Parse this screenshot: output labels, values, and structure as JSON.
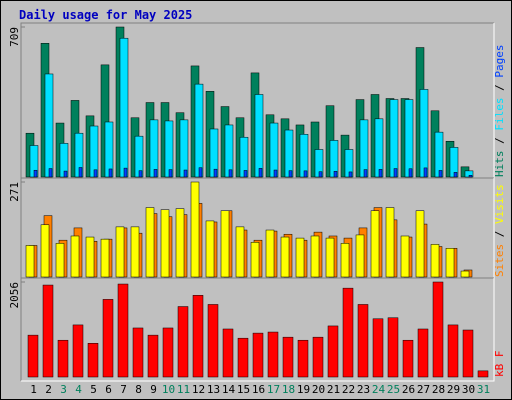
{
  "title": "Daily usage for May 2025",
  "legend_separator": "/",
  "chart_data": [
    {
      "type": "bar",
      "ylim": [
        0,
        709
      ],
      "yticks": [
        709
      ],
      "series": [
        {
          "name": "Hits",
          "color": "#00805c",
          "values": [
            207,
            632,
            255,
            362,
            289,
            530,
            709,
            280,
            352,
            352,
            304,
            525,
            405,
            333,
            280,
            492,
            294,
            275,
            246,
            260,
            337,
            198,
            366,
            390,
            371,
            371,
            612,
            313,
            169,
            48,
            0
          ]
        },
        {
          "name": "Files",
          "color": "#00e0ff",
          "values": [
            149,
            487,
            159,
            207,
            241,
            260,
            656,
            193,
            270,
            265,
            270,
            439,
            227,
            246,
            188,
            390,
            255,
            222,
            202,
            130,
            173,
            130,
            270,
            275,
            366,
            366,
            414,
            212,
            140,
            29,
            0
          ]
        },
        {
          "name": "Pages",
          "color": "#0040ff",
          "values": [
            32,
            40,
            28,
            45,
            34,
            38,
            42,
            30,
            36,
            35,
            33,
            44,
            37,
            34,
            31,
            41,
            33,
            30,
            29,
            25,
            27,
            24,
            35,
            36,
            40,
            39,
            43,
            31,
            22,
            8,
            0
          ]
        }
      ]
    },
    {
      "type": "bar",
      "ylim": [
        0,
        271
      ],
      "yticks": [
        271
      ],
      "series": [
        {
          "name": "Sites",
          "color": "#ff8000",
          "values": [
            90,
            175,
            105,
            140,
            102,
            108,
            140,
            125,
            181,
            172,
            178,
            210,
            157,
            189,
            134,
            105,
            131,
            122,
            105,
            128,
            117,
            111,
            140,
            198,
            163,
            114,
            151,
            87,
            82,
            20,
            0
          ]
        },
        {
          "name": "Visits",
          "color": "#ffff00",
          "values": [
            90,
            149,
            96,
            117,
            114,
            108,
            143,
            143,
            198,
            192,
            195,
            271,
            160,
            189,
            143,
            99,
            134,
            114,
            111,
            117,
            111,
            96,
            120,
            189,
            198,
            117,
            189,
            93,
            82,
            17,
            0
          ]
        }
      ]
    },
    {
      "type": "bar",
      "ylim": [
        0,
        2056
      ],
      "yticks": [
        2056
      ],
      "categories": [
        "1",
        "2",
        "3",
        "4",
        "5",
        "6",
        "7",
        "8",
        "9",
        "10",
        "11",
        "12",
        "13",
        "14",
        "15",
        "16",
        "17",
        "18",
        "19",
        "20",
        "21",
        "22",
        "23",
        "24",
        "25",
        "26",
        "27",
        "28",
        "29",
        "30",
        "31"
      ],
      "category_colors": [
        "#000000",
        "#000000",
        "#00805c",
        "#00805c",
        "#000000",
        "#000000",
        "#000000",
        "#000000",
        "#000000",
        "#00805c",
        "#00805c",
        "#000000",
        "#000000",
        "#000000",
        "#000000",
        "#000000",
        "#00805c",
        "#00805c",
        "#000000",
        "#000000",
        "#000000",
        "#000000",
        "#000000",
        "#00805c",
        "#00805c",
        "#000000",
        "#000000",
        "#000000",
        "#000000",
        "#000000",
        "#00805c"
      ],
      "series": [
        {
          "name": "kB F",
          "color": "#ff0000",
          "values": [
            906,
            1990,
            796,
            1127,
            730,
            1680,
            2012,
            1061,
            906,
            1061,
            1525,
            1768,
            1570,
            1039,
            840,
            950,
            973,
            862,
            796,
            862,
            1105,
            1923,
            1570,
            1260,
            1282,
            796,
            1039,
            2056,
            1127,
            1017,
            133
          ]
        }
      ]
    }
  ]
}
